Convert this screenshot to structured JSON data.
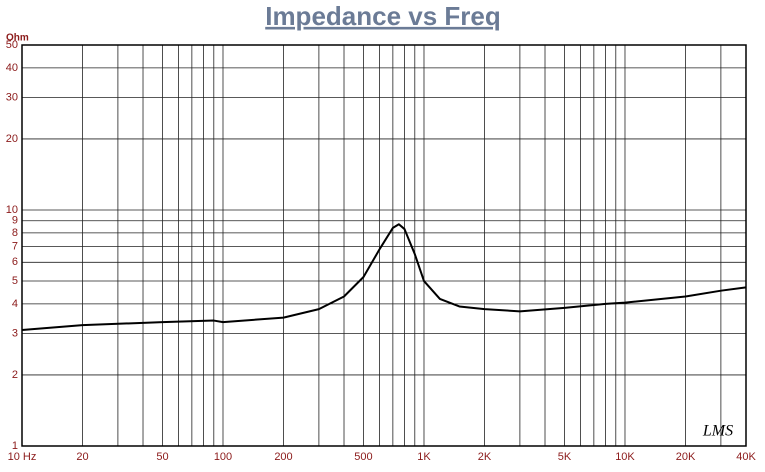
{
  "chart_data": {
    "type": "line",
    "title": "Impedance vs Freq",
    "y_label": "Ohm",
    "logo": "LMS",
    "x_scale": "log",
    "y_scale": "log",
    "grid": true,
    "xlim": [
      10,
      40000
    ],
    "ylim": [
      1,
      50
    ],
    "xticks": [
      {
        "value": 10,
        "label": "10  Hz"
      },
      20,
      {
        "value": 30,
        "label": null
      },
      {
        "value": 40,
        "label": null
      },
      50,
      {
        "value": 60,
        "label": null
      },
      {
        "value": 70,
        "label": null
      },
      {
        "value": 80,
        "label": null
      },
      {
        "value": 90,
        "label": null
      },
      100,
      200,
      {
        "value": 300,
        "label": null
      },
      {
        "value": 400,
        "label": null
      },
      500,
      {
        "value": 600,
        "label": null
      },
      {
        "value": 700,
        "label": null
      },
      {
        "value": 800,
        "label": null
      },
      {
        "value": 900,
        "label": null
      },
      {
        "value": 1000,
        "label": "1K"
      },
      {
        "value": 2000,
        "label": "2K"
      },
      {
        "value": 3000,
        "label": null
      },
      {
        "value": 4000,
        "label": null
      },
      {
        "value": 5000,
        "label": "5K"
      },
      {
        "value": 6000,
        "label": null
      },
      {
        "value": 7000,
        "label": null
      },
      {
        "value": 8000,
        "label": null
      },
      {
        "value": 9000,
        "label": null
      },
      {
        "value": 10000,
        "label": "10K"
      },
      {
        "value": 20000,
        "label": "20K"
      },
      {
        "value": 30000,
        "label": null
      },
      {
        "value": 40000,
        "label": "40K"
      }
    ],
    "yticks": [
      1,
      2,
      3,
      4,
      5,
      6,
      7,
      8,
      9,
      10,
      20,
      30,
      40,
      50
    ],
    "x": [
      10,
      20,
      50,
      90,
      100,
      200,
      300,
      400,
      500,
      600,
      700,
      750,
      800,
      900,
      1000,
      1200,
      1500,
      2000,
      3000,
      5000,
      8000,
      10000,
      20000,
      30000,
      40000
    ],
    "series": [
      {
        "color": "#000000",
        "values": [
          3.1,
          3.25,
          3.35,
          3.4,
          3.35,
          3.5,
          3.8,
          4.3,
          5.2,
          6.8,
          8.4,
          8.7,
          8.3,
          6.5,
          5.0,
          4.2,
          3.9,
          3.8,
          3.72,
          3.85,
          4.0,
          4.05,
          4.3,
          4.55,
          4.7
        ]
      }
    ]
  }
}
